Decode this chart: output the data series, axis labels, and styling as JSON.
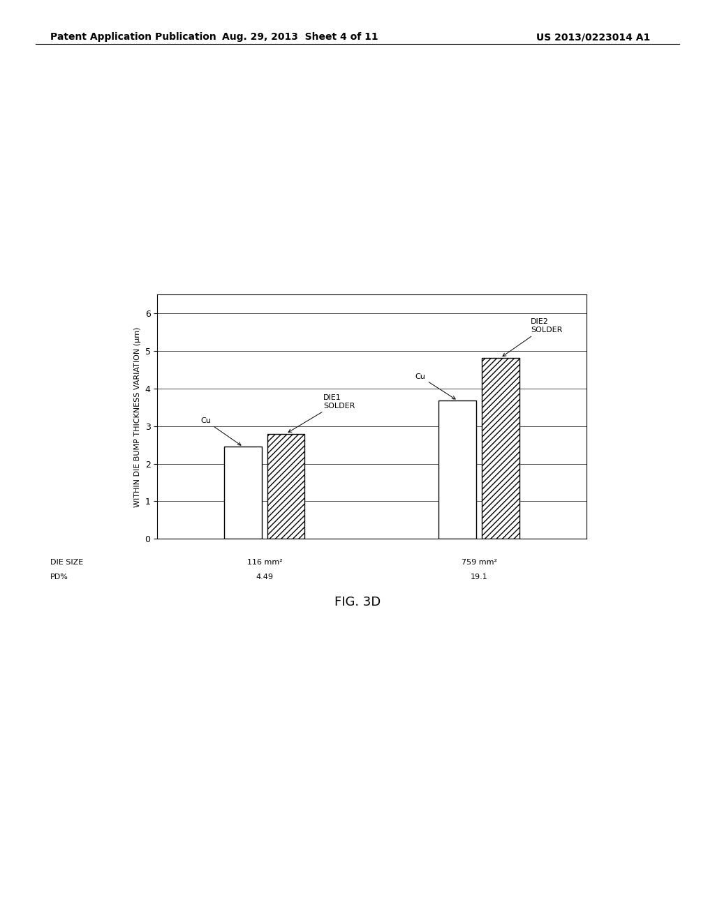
{
  "title": "FIG. 3D",
  "ylabel": "WITHIN DIE BUMP THICKNESS VARIATION (μm)",
  "ylim": [
    0,
    6.5
  ],
  "yticks": [
    0,
    1,
    2,
    3,
    4,
    5,
    6
  ],
  "groups": [
    {
      "cu_value": 2.45,
      "solder_value": 2.8,
      "cu_annotation": "Cu",
      "solder_annotation": "DIE1\nSOLDER",
      "x_center": 1
    },
    {
      "cu_value": 3.68,
      "solder_value": 4.82,
      "cu_annotation": "Cu",
      "solder_annotation": "DIE2\nSOLDER",
      "x_center": 3
    }
  ],
  "bar_width": 0.35,
  "bar_gap": 0.05,
  "cu_facecolor": "white",
  "cu_edgecolor": "black",
  "solder_facecolor": "white",
  "solder_edgecolor": "black",
  "hatch_pattern": "////",
  "background_color": "white",
  "header_left": "Patent Application Publication",
  "header_mid": "Aug. 29, 2013  Sheet 4 of 11",
  "header_right": "US 2013/0223014 A1",
  "header_fontsize": 10,
  "annotation_fontsize": 8,
  "axis_label_fontsize": 8,
  "tick_fontsize": 9,
  "fig_caption_fontsize": 13,
  "die_label_fontsize": 8,
  "xlim": [
    0,
    4
  ],
  "group1_mm": "116 mm²",
  "group1_pd": "4.49",
  "group2_mm": "759 mm²",
  "group2_pd": "19.1",
  "die_size_label": "DIE SIZE",
  "pd_label": "PD%"
}
